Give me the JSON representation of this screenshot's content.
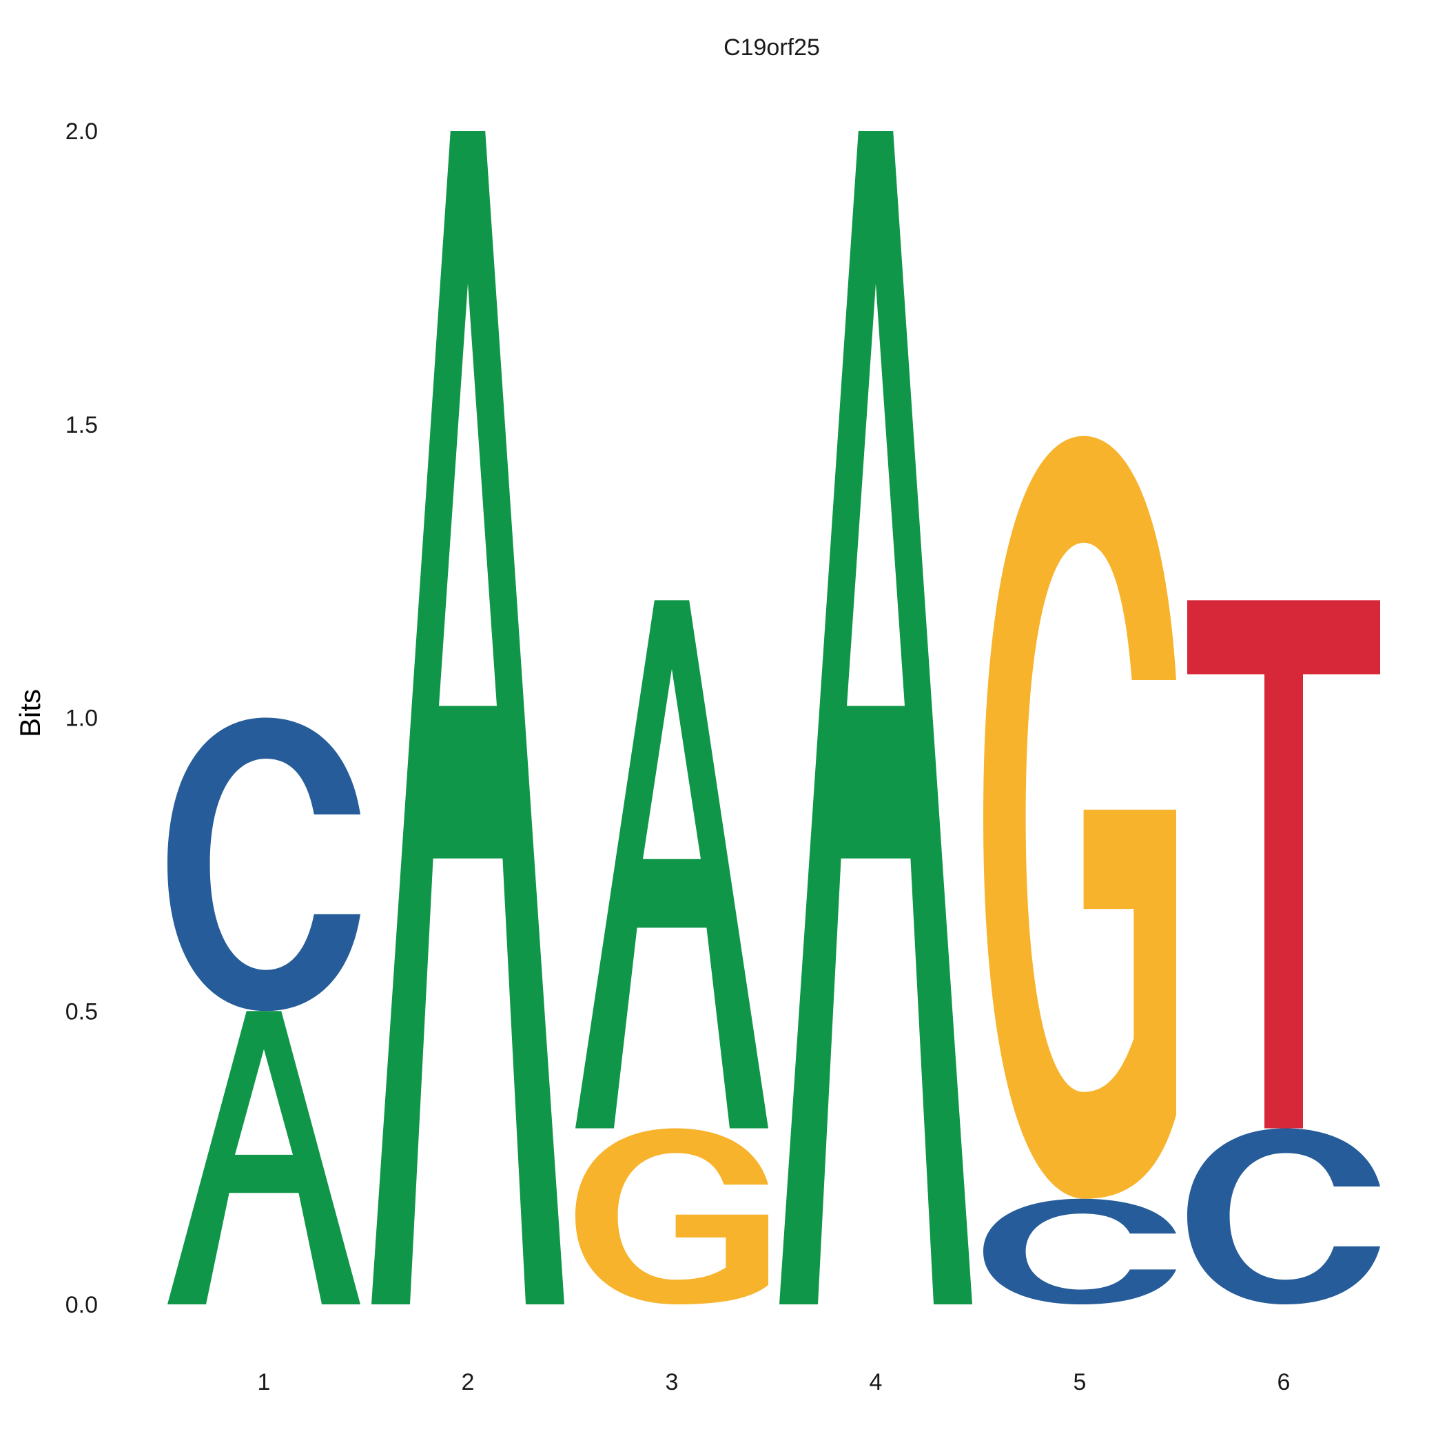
{
  "chart_data": {
    "type": "sequence-logo",
    "title": "C19orf25",
    "ylabel": "Bits",
    "xlabel": "",
    "ylim": [
      0,
      2
    ],
    "yticks": [
      "0.0",
      "0.5",
      "1.0",
      "1.5",
      "2.0"
    ],
    "categories": [
      "1",
      "2",
      "3",
      "4",
      "5",
      "6"
    ],
    "colors": {
      "A": "#109648",
      "C": "#255C99",
      "G": "#F7B32B",
      "T": "#D62839"
    },
    "positions": [
      {
        "position": "1",
        "letters": [
          {
            "letter": "A",
            "bits": 0.5
          },
          {
            "letter": "C",
            "bits": 0.5
          }
        ]
      },
      {
        "position": "2",
        "letters": [
          {
            "letter": "A",
            "bits": 2.0
          }
        ]
      },
      {
        "position": "3",
        "letters": [
          {
            "letter": "G",
            "bits": 0.3
          },
          {
            "letter": "A",
            "bits": 0.9
          }
        ]
      },
      {
        "position": "4",
        "letters": [
          {
            "letter": "A",
            "bits": 2.0
          }
        ]
      },
      {
        "position": "5",
        "letters": [
          {
            "letter": "C",
            "bits": 0.18
          },
          {
            "letter": "G",
            "bits": 1.3
          }
        ]
      },
      {
        "position": "6",
        "letters": [
          {
            "letter": "C",
            "bits": 0.3
          },
          {
            "letter": "T",
            "bits": 0.9
          }
        ]
      }
    ]
  }
}
